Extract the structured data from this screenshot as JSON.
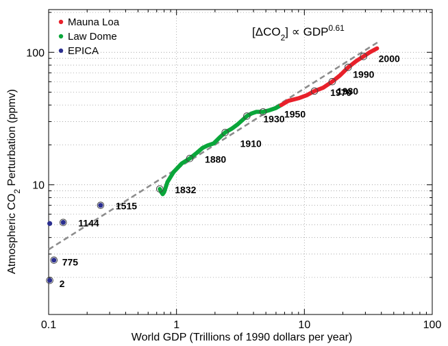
{
  "chart_data": {
    "type": "scatter",
    "xscale": "log",
    "yscale": "log",
    "xlim": [
      0.1,
      100
    ],
    "ylim": [
      1.05,
      210
    ],
    "grid": true,
    "legend_position": "top-left",
    "xlabel": "World GDP (Trillions of 1990 dollars per year)",
    "ylabel": {
      "pre": "Atmospheric CO",
      "sub": "2",
      "post": " Perturbation (ppmv)"
    },
    "annotation": {
      "l1": "[ΔCO",
      "l1sub": "2",
      "l2": "] ∝ GDP",
      "sup": "0.61"
    },
    "x_ticks": [
      {
        "value": 0.1,
        "label": "0.1"
      },
      {
        "value": 1,
        "label": "1"
      },
      {
        "value": 10,
        "label": "10"
      },
      {
        "value": 100,
        "label": "100"
      }
    ],
    "y_ticks": [
      {
        "value": 10,
        "label": "10"
      },
      {
        "value": 100,
        "label": "100"
      }
    ],
    "fit_line": {
      "exponent": 0.61,
      "x": [
        0.1,
        38
      ],
      "y": [
        3.25,
        120
      ]
    },
    "series": [
      {
        "name": "Mauna Loa",
        "color": "#e8202a",
        "curve": [
          [
            6.6,
            40
          ],
          [
            7.5,
            43
          ],
          [
            9,
            45
          ],
          [
            10.5,
            47.5
          ],
          [
            12,
            51
          ],
          [
            14,
            54
          ],
          [
            16.5,
            60
          ],
          [
            19,
            67
          ],
          [
            22,
            77
          ],
          [
            25.5,
            86
          ],
          [
            29,
            93
          ],
          [
            32.5,
            100
          ],
          [
            37,
            107
          ]
        ]
      },
      {
        "name": "Law Dome",
        "color": "#0aa63a",
        "curve": [
          [
            0.74,
            9.3
          ],
          [
            0.76,
            8.8
          ],
          [
            0.78,
            8.5
          ],
          [
            0.8,
            8.8
          ],
          [
            0.85,
            10.5
          ],
          [
            0.95,
            12.5
          ],
          [
            1.1,
            14.5
          ],
          [
            1.27,
            15.8
          ],
          [
            1.45,
            17.5
          ],
          [
            1.6,
            19
          ],
          [
            1.75,
            19.8
          ],
          [
            1.95,
            20.5
          ],
          [
            2.15,
            22.5
          ],
          [
            2.4,
            24.8
          ],
          [
            2.7,
            26.5
          ],
          [
            3.0,
            28.5
          ],
          [
            3.3,
            31
          ],
          [
            3.55,
            33
          ],
          [
            3.85,
            34.5
          ],
          [
            4.2,
            35.5
          ],
          [
            4.75,
            35.5
          ],
          [
            5.3,
            36.5
          ],
          [
            6.0,
            38
          ],
          [
            6.6,
            40
          ]
        ]
      },
      {
        "name": "EPICA",
        "color": "#2b2f8f",
        "points": [
          [
            0.102,
            1.9
          ],
          [
            0.11,
            2.7
          ],
          [
            0.13,
            5.2
          ],
          [
            0.102,
            5.1
          ],
          [
            0.255,
            7
          ]
        ]
      }
    ],
    "year_markers": [
      {
        "year": "2",
        "x": 0.102,
        "y": 1.9,
        "label_dx": 14,
        "label_dy": 10
      },
      {
        "year": "775",
        "x": 0.11,
        "y": 2.7,
        "label_dx": 12,
        "label_dy": 8
      },
      {
        "year": "1144",
        "x": 0.13,
        "y": 5.2,
        "label_dx": 22,
        "label_dy": 6
      },
      {
        "year": "1515",
        "x": 0.255,
        "y": 7,
        "label_dx": 22,
        "label_dy": 6
      },
      {
        "year": "1832",
        "x": 0.74,
        "y": 9.3,
        "label_dx": 22,
        "label_dy": 6
      },
      {
        "year": "1880",
        "x": 1.27,
        "y": 15.8,
        "label_dx": 22,
        "label_dy": 6
      },
      {
        "year": "1910",
        "x": 2.4,
        "y": 24.8,
        "label_dx": 22,
        "label_dy": 21
      },
      {
        "year": "1930",
        "x": 3.55,
        "y": 33,
        "label_dx": 24,
        "label_dy": 9
      },
      {
        "year": "1950",
        "x": 4.75,
        "y": 35.5,
        "label_dx": 31,
        "label_dy": 8
      },
      {
        "year": "1970",
        "x": 12,
        "y": 51,
        "label_dx": 23,
        "label_dy": 7
      },
      {
        "year": "1980",
        "x": 16.5,
        "y": 60,
        "label_dx": 7,
        "label_dy": 19
      },
      {
        "year": "1990",
        "x": 22,
        "y": 77,
        "label_dx": 7,
        "label_dy": 15
      },
      {
        "year": "2000",
        "x": 29,
        "y": 93,
        "label_dx": 22,
        "label_dy": 8
      }
    ]
  }
}
